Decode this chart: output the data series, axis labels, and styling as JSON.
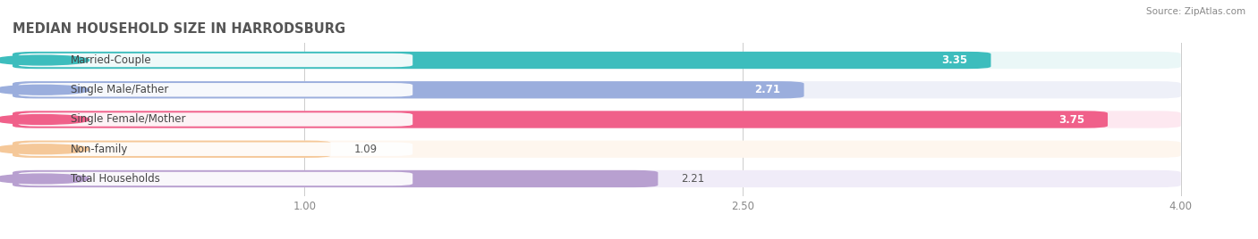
{
  "title": "MEDIAN HOUSEHOLD SIZE IN HARRODSBURG",
  "source": "Source: ZipAtlas.com",
  "categories": [
    "Married-Couple",
    "Single Male/Father",
    "Single Female/Mother",
    "Non-family",
    "Total Households"
  ],
  "values": [
    3.35,
    2.71,
    3.75,
    1.09,
    2.21
  ],
  "value_labels": [
    "3.35",
    "2.71",
    "3.75",
    "1.09",
    "2.21"
  ],
  "bar_colors": [
    "#3dbdbd",
    "#9baedd",
    "#f0608a",
    "#f5c899",
    "#b8a0d0"
  ],
  "bar_bg_colors": [
    "#eaf7f7",
    "#eef0f8",
    "#fde8f0",
    "#fef6ee",
    "#f0ecf8"
  ],
  "label_dot_colors": [
    "#3dbdbd",
    "#9baedd",
    "#f0608a",
    "#f5c899",
    "#b8a0d0"
  ],
  "xlim": [
    0.0,
    4.2
  ],
  "xmin": 0.0,
  "xmax": 4.0,
  "xticks": [
    1.0,
    2.5,
    4.0
  ],
  "bar_height": 0.58,
  "label_fontsize": 8.5,
  "value_fontsize": 8.5,
  "title_fontsize": 10.5,
  "background_color": "#ffffff",
  "value_inside_threshold": 2.5
}
